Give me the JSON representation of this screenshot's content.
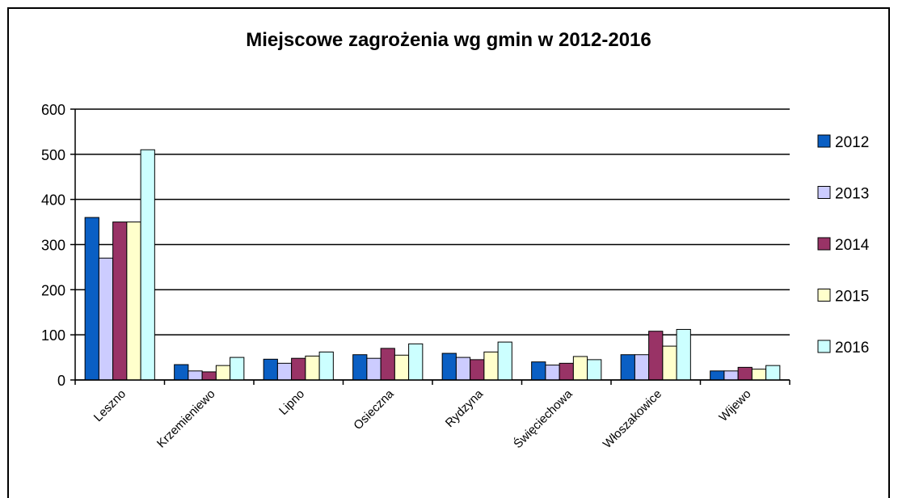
{
  "chart_data": {
    "type": "bar",
    "title": "Miejscowe zagrożenia wg gmin w 2012-2016",
    "categories": [
      "Leszno",
      "Krzemieniewo",
      "Lipno",
      "Osieczna",
      "Rydzyna",
      "Święciechowa",
      "Włoszakowice",
      "Wijewo"
    ],
    "series": [
      {
        "name": "2012",
        "color": "#0a5fc4",
        "values": [
          360,
          34,
          46,
          56,
          59,
          40,
          56,
          20
        ]
      },
      {
        "name": "2013",
        "color": "#ccccff",
        "values": [
          270,
          20,
          37,
          48,
          50,
          33,
          56,
          20
        ]
      },
      {
        "name": "2014",
        "color": "#993366",
        "values": [
          350,
          18,
          48,
          70,
          45,
          37,
          108,
          28
        ]
      },
      {
        "name": "2015",
        "color": "#ffffcc",
        "values": [
          350,
          32,
          53,
          55,
          62,
          52,
          75,
          24
        ]
      },
      {
        "name": "2016",
        "color": "#ccffff",
        "values": [
          510,
          50,
          62,
          80,
          84,
          45,
          112,
          32
        ]
      }
    ],
    "ylim": [
      0,
      600
    ],
    "yticks": [
      0,
      100,
      200,
      300,
      400,
      500,
      600
    ],
    "grid": true,
    "legend": "right"
  }
}
